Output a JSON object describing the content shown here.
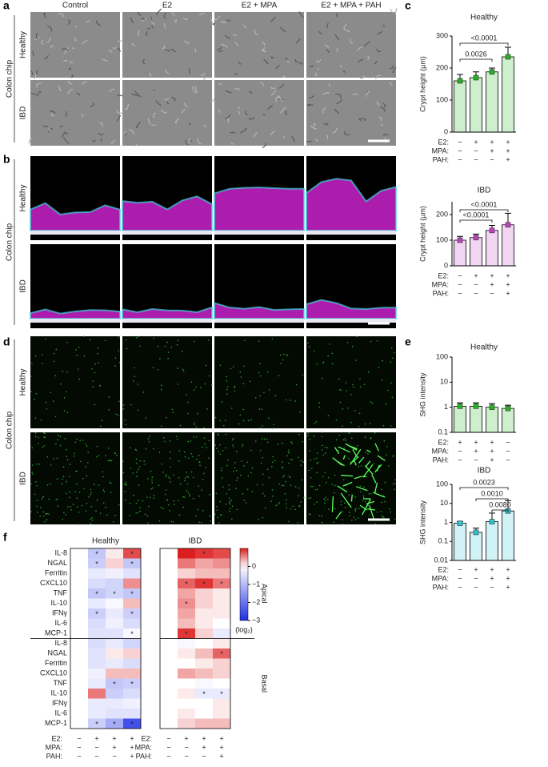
{
  "panel_labels": [
    "a",
    "b",
    "c",
    "d",
    "e",
    "f"
  ],
  "conditions": [
    "Control",
    "E2",
    "E2 + MPA",
    "E2 + MPA + PAH"
  ],
  "group": "Colon chip",
  "rows": [
    "Healthy",
    "IBD"
  ],
  "chart_data": [
    {
      "type": "bar",
      "title": "Healthy",
      "y_label": "Crypt height (µm)",
      "color": "#22b522",
      "log": false,
      "categories": [
        "Control",
        "E2",
        "E2 + MPA",
        "E2 + MPA + PAH"
      ],
      "values": [
        160,
        170,
        188,
        235
      ],
      "errors": [
        20,
        18,
        12,
        30
      ],
      "ylim": [
        0,
        300
      ],
      "yticks": [
        0,
        100,
        200,
        300
      ],
      "comparisons": [
        {
          "from": 0,
          "to": 3,
          "label": "<0.0001"
        },
        {
          "from": 0,
          "to": 2,
          "label": "0.0026"
        }
      ],
      "treatments": {
        "names": [
          "E2:",
          "MPA:",
          "PAH:"
        ],
        "signs": [
          [
            "−",
            "+",
            "+",
            "+"
          ],
          [
            "−",
            "−",
            "+",
            "+"
          ],
          [
            "−",
            "−",
            "−",
            "+"
          ]
        ]
      }
    },
    {
      "type": "bar",
      "title": "IBD",
      "y_label": "Crypt height (µm)",
      "color": "#c23fc4",
      "log": false,
      "categories": [
        "Control",
        "E2",
        "E2 + MPA",
        "E2 + MPA + PAH"
      ],
      "values": [
        100,
        110,
        138,
        160
      ],
      "errors": [
        15,
        14,
        20,
        45
      ],
      "ylim": [
        0,
        250
      ],
      "yticks": [
        0,
        100,
        200
      ],
      "comparisons": [
        {
          "from": 0,
          "to": 3,
          "label": "<0.0001"
        },
        {
          "from": 0,
          "to": 2,
          "label": "<0.0001"
        }
      ],
      "treatments": {
        "names": [
          "E2:",
          "MPA:",
          "PAH:"
        ],
        "signs": [
          [
            "−",
            "+",
            "+",
            "+"
          ],
          [
            "−",
            "−",
            "+",
            "+"
          ],
          [
            "−",
            "−",
            "−",
            "+"
          ]
        ]
      }
    },
    {
      "type": "bar",
      "title": "Healthy",
      "y_label": "SHG intensity",
      "color": "#22b522",
      "log": true,
      "categories": [
        "E2",
        "E2 + MPA",
        "E2 + MPA + PAH",
        "Control"
      ],
      "values": [
        1.1,
        1.1,
        1.0,
        0.9
      ],
      "errors": [
        0.4,
        0.4,
        0.4,
        0.3
      ],
      "ylim": [
        0.1,
        100
      ],
      "yticks": [
        0.1,
        1,
        10,
        100
      ],
      "comparisons": [],
      "treatments": {
        "names": [
          "E2:",
          "MPA:",
          "PAH:"
        ],
        "signs": [
          [
            "+",
            "+",
            "+",
            "−"
          ],
          [
            "−",
            "+",
            "+",
            "−"
          ],
          [
            "−",
            "−",
            "+",
            "−"
          ]
        ]
      }
    },
    {
      "type": "bar",
      "title": "IBD",
      "y_label": "SHG intensity",
      "color": "#2ec4d4",
      "log": true,
      "categories": [
        "Control",
        "E2",
        "E2 + MPA",
        "E2 + MPA + PAH"
      ],
      "values": [
        0.9,
        0.3,
        1.1,
        4
      ],
      "errors": [
        0.2,
        0.2,
        2,
        10
      ],
      "ylim": [
        0.01,
        100
      ],
      "yticks": [
        0.01,
        0.1,
        1,
        10,
        100
      ],
      "comparisons": [
        {
          "from": 0,
          "to": 3,
          "label": "0.0023"
        },
        {
          "from": 1,
          "to": 3,
          "label": "0.0010"
        },
        {
          "from": 2,
          "to": 3,
          "label": "0.0080"
        }
      ],
      "treatments": {
        "names": [
          "E2:",
          "MPA:",
          "PAH:"
        ],
        "signs": [
          [
            "−",
            "+",
            "+",
            "+"
          ],
          [
            "−",
            "−",
            "+",
            "+"
          ],
          [
            "−",
            "−",
            "−",
            "+"
          ]
        ]
      }
    },
    {
      "type": "heatmap",
      "title": "Healthy",
      "rows": [
        "IL-8",
        "NGAL",
        "Ferritin",
        "CXCL10",
        "TNF",
        "IL-10",
        "IFNγ",
        "IL-6",
        "MCP-1",
        "IL-8",
        "NGAL",
        "Ferritin",
        "CXCL10",
        "TNF",
        "IL-10",
        "IFNγ",
        "IL-6",
        "MCP-1"
      ],
      "values": [
        [
          0,
          -0.8,
          0.1,
          0.8
        ],
        [
          0,
          -0.7,
          0.2,
          -0.8
        ],
        [
          0,
          -0.3,
          -0.2,
          -0.4
        ],
        [
          0,
          -0.5,
          -0.6,
          0.5
        ],
        [
          0,
          -0.8,
          -0.6,
          -0.8
        ],
        [
          0,
          -0.3,
          -0.1,
          0.3
        ],
        [
          0,
          -0.7,
          -0.3,
          -0.7
        ],
        [
          0,
          -0.5,
          -0.2,
          -0.5
        ],
        [
          0,
          -0.4,
          -0.4,
          -0.1
        ],
        [
          0,
          -0.5,
          -0.3,
          -0.6
        ],
        [
          0,
          -0.4,
          0.1,
          0.2
        ],
        [
          0,
          -0.4,
          -0.3,
          -0.5
        ],
        [
          0,
          -0.2,
          0.3,
          0.3
        ],
        [
          0,
          -0.3,
          -0.8,
          -0.7
        ],
        [
          0,
          0.6,
          -0.7,
          -0.5
        ],
        [
          0,
          -0.3,
          -0.3,
          -0.2
        ],
        [
          0,
          -0.3,
          -0.4,
          -0.4
        ],
        [
          0,
          -0.7,
          -1.2,
          -2.5
        ]
      ],
      "stars": [
        {
          "row": 0,
          "col": 1,
          "text": "*"
        },
        {
          "row": 0,
          "col": 3,
          "text": "*"
        },
        {
          "row": 1,
          "col": 1,
          "text": "*"
        },
        {
          "row": 1,
          "col": 3,
          "text": "*"
        },
        {
          "row": 4,
          "col": 1,
          "text": "*"
        },
        {
          "row": 4,
          "col": 2,
          "text": "*"
        },
        {
          "row": 4,
          "col": 3,
          "text": "*"
        },
        {
          "row": 6,
          "col": 1,
          "text": "*"
        },
        {
          "row": 6,
          "col": 3,
          "text": "*"
        },
        {
          "row": 8,
          "col": 3,
          "text": "*"
        },
        {
          "row": 13,
          "col": 2,
          "text": "*"
        },
        {
          "row": 13,
          "col": 3,
          "text": "*"
        },
        {
          "row": 17,
          "col": 1,
          "text": "*"
        },
        {
          "row": 17,
          "col": 2,
          "text": "*"
        },
        {
          "row": 17,
          "col": 3,
          "text": "*"
        }
      ],
      "treatments": {
        "names": [
          "E2:",
          "MPA:",
          "PAH:"
        ],
        "signs": [
          [
            "−",
            "+",
            "+",
            "+"
          ],
          [
            "−",
            "−",
            "+",
            "+"
          ],
          [
            "−",
            "−",
            "−",
            "+"
          ]
        ]
      }
    },
    {
      "type": "heatmap",
      "title": "IBD",
      "values": [
        [
          0,
          1.0,
          0.9,
          0.8
        ],
        [
          0,
          0.6,
          0.4,
          0.5
        ],
        [
          0,
          0.2,
          0.3,
          0.3
        ],
        [
          0,
          0.7,
          0.9,
          0.6
        ],
        [
          0,
          0.4,
          0.2,
          0.1
        ],
        [
          0,
          0.5,
          0.2,
          0.1
        ],
        [
          0,
          0.4,
          0.1,
          0.1
        ],
        [
          0,
          0.3,
          0.1,
          0
        ],
        [
          0,
          0.9,
          0.2,
          -0.3
        ],
        [
          0,
          -0.1,
          0,
          0.1
        ],
        [
          0,
          0.1,
          0.3,
          0.7
        ],
        [
          0,
          0,
          0.1,
          0.2
        ],
        [
          0,
          0.4,
          0.3,
          0.2
        ],
        [
          0,
          0,
          -0.1,
          0
        ],
        [
          0,
          0.1,
          -0.3,
          -0.3
        ],
        [
          0,
          0,
          0,
          0.1
        ],
        [
          0,
          0.1,
          0,
          0.1
        ],
        [
          0,
          0.2,
          0.3,
          0.3
        ]
      ],
      "stars": [
        {
          "row": 0,
          "col": 2,
          "text": "*"
        },
        {
          "row": 3,
          "col": 1,
          "text": "*"
        },
        {
          "row": 3,
          "col": 2,
          "text": "*"
        },
        {
          "row": 3,
          "col": 3,
          "text": "*"
        },
        {
          "row": 5,
          "col": 1,
          "text": "*"
        },
        {
          "row": 8,
          "col": 1,
          "text": "*"
        },
        {
          "row": 10,
          "col": 3,
          "text": "*"
        },
        {
          "row": 14,
          "col": 2,
          "text": "*"
        },
        {
          "row": 14,
          "col": 3,
          "text": "*"
        }
      ],
      "sections": [
        "Apical",
        "Basal"
      ],
      "colorbar": {
        "lim": [
          -3,
          1
        ],
        "ticks": [
          0,
          {
            "value": -1,
            "label": "−1"
          },
          {
            "value": -2,
            "label": "−2"
          },
          {
            "value": -3,
            "label": "−3"
          }
        ],
        "label": "(log₂)"
      },
      "treatments": {
        "names": [
          "E2:",
          "MPA:",
          "PAH:"
        ],
        "signs": [
          [
            "−",
            "+",
            "+",
            "+"
          ],
          [
            "−",
            "−",
            "+",
            "+"
          ],
          [
            "−",
            "−",
            "−",
            "+"
          ]
        ]
      }
    }
  ]
}
